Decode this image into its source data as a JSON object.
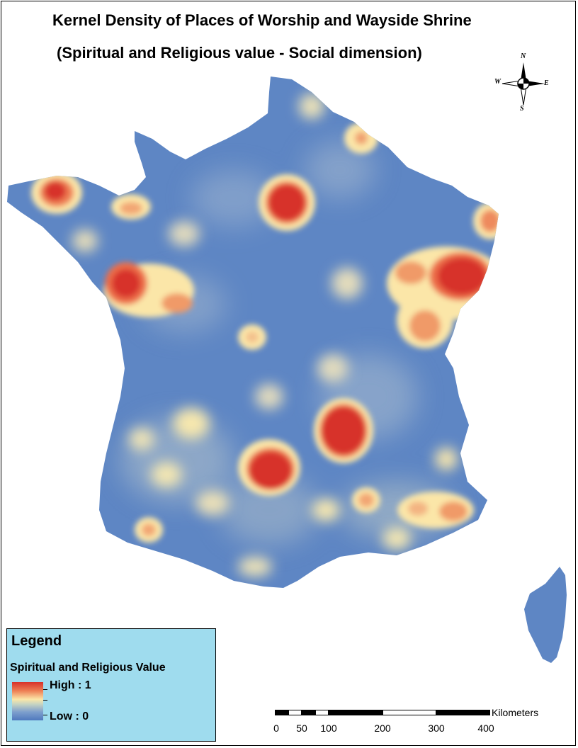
{
  "title": "Kernel Density of Places of Worship and Wayside Shrine",
  "subtitle": "(Spiritual and Religious value - Social dimension)",
  "compass": {
    "north": "N",
    "south": "S",
    "east": "E",
    "west": "W"
  },
  "legend": {
    "heading": "Legend",
    "layer_name": "Spiritual and Religious Value",
    "high_label": "High : 1",
    "low_label": "Low : 0"
  },
  "scale_bar": {
    "unit": "Kilometers",
    "ticks": [
      "0",
      "50",
      "100",
      "200",
      "300",
      "400"
    ]
  },
  "colors": {
    "low": "#4f79be",
    "mid": "#fbe6a8",
    "high": "#d7322b",
    "legend_background": "#9fdcee"
  },
  "map": {
    "region": "France",
    "hotspots": [
      {
        "name": "western Brittany",
        "intensity": 0.9
      },
      {
        "name": "Paris region",
        "intensity": 1.0
      },
      {
        "name": "lower Loire valley",
        "intensity": 1.0
      },
      {
        "name": "Alsace / Lorraine",
        "intensity": 1.0
      },
      {
        "name": "Massif Central north",
        "intensity": 1.0
      },
      {
        "name": "Massif Central south",
        "intensity": 1.0
      },
      {
        "name": "Provence",
        "intensity": 0.75
      }
    ]
  }
}
